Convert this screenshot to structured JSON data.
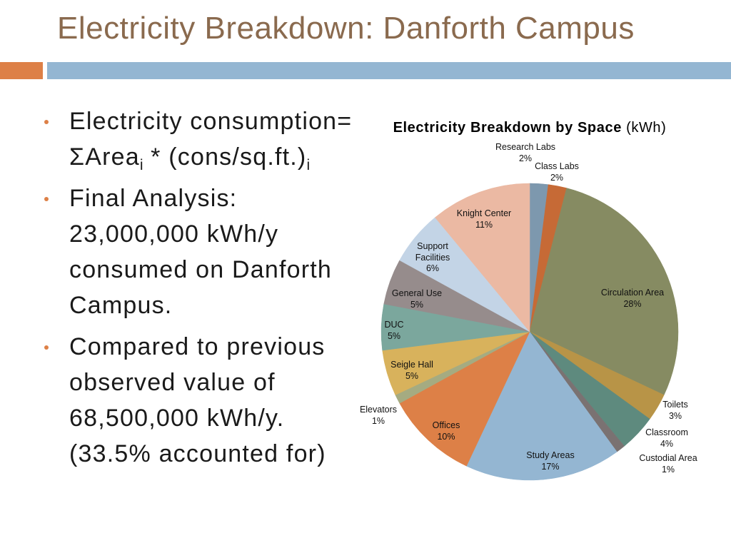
{
  "slide": {
    "title": "Electricity Breakdown: Danforth Campus"
  },
  "theme": {
    "title_color": "#8A6A4E",
    "accent_orange": "#DD8047",
    "accent_blue": "#94B6D2",
    "text_color": "#1A1A1A"
  },
  "bullets": [
    {
      "line_1": "Electricity consumption=",
      "formula": {
        "symbol": "ΣArea",
        "symbol_sub": "i",
        "rest": " * (cons/sq.ft.)",
        "rest_sub": "i"
      }
    },
    {
      "lines": [
        "Final Analysis:",
        "23,000,000 kWh/y",
        "consumed on Danforth",
        "Campus."
      ]
    },
    {
      "lines": [
        "Compared to previous",
        "observed value of",
        "68,500,000 kWh/y.",
        "(33.5% accounted for)"
      ]
    }
  ],
  "chart_data": {
    "type": "pie",
    "title": "Electricity Breakdown by Space",
    "title_unit": "(kWh)",
    "categories": [
      "Research Labs",
      "Class Labs",
      "Circulation Area",
      "Toilets",
      "Classroom",
      "Custodial Area",
      "Study Areas",
      "Offices",
      "Elevators",
      "Seigle Hall",
      "DUC",
      "General Use",
      "Support Facilities",
      "Knight Center"
    ],
    "values": [
      2,
      2,
      28,
      3,
      4,
      1,
      17,
      10,
      1,
      5,
      5,
      5,
      6,
      11
    ],
    "data_labels": [
      "2%",
      "2%",
      "28%",
      "3%",
      "4%",
      "1%",
      "17%",
      "10%",
      "1%",
      "5%",
      "5%",
      "5%",
      "6%",
      "11%"
    ],
    "colors": [
      "#7D98AE",
      "#C66A36",
      "#868B62",
      "#B89447",
      "#5E8A7E",
      "#7A7272",
      "#94B6D2",
      "#DD8047",
      "#A5AB81",
      "#D8B25C",
      "#7BA79D",
      "#968C8C",
      "#C3D4E6",
      "#EBB9A3"
    ],
    "legend": "none"
  }
}
